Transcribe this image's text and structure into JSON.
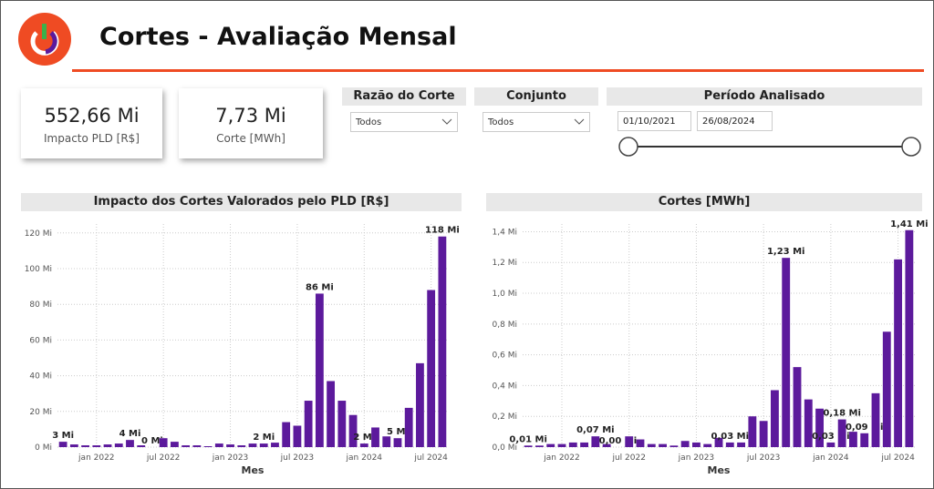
{
  "header": {
    "title": "Cortes - Avaliação Mensal"
  },
  "kpis": [
    {
      "value": "552,66 Mi",
      "label": "Impacto PLD [R$]"
    },
    {
      "value": "7,73 Mi",
      "label": "Corte [MWh]"
    }
  ],
  "filters": [
    {
      "label": "Razão do Corte",
      "selection": "Todos"
    },
    {
      "label": "Conjunto",
      "selection": "Todos"
    }
  ],
  "period": {
    "label": "Período Analisado",
    "start": "01/10/2021",
    "end": "26/08/2024"
  },
  "charts": [
    {
      "type": "bar",
      "title": "Impacto dos Cortes Valorados pelo PLD [R$]",
      "xlabel": "Mes",
      "color": "#5c1a9c",
      "grid": true,
      "categories": [
        null,
        null,
        null,
        "jan 2022",
        null,
        null,
        null,
        null,
        null,
        "jul 2022",
        null,
        null,
        null,
        null,
        null,
        "jan 2023",
        null,
        null,
        null,
        null,
        null,
        "jul 2023",
        null,
        null,
        null,
        null,
        null,
        "jan 2024",
        null,
        null,
        null,
        null,
        null,
        "jul 2024",
        null
      ],
      "values": [
        3,
        1.5,
        1,
        1,
        1.5,
        2,
        4,
        1,
        0,
        5,
        3,
        1,
        1,
        0.5,
        2,
        1.5,
        1,
        2,
        2,
        2.5,
        14,
        12,
        26,
        86,
        37,
        26,
        18,
        2,
        11,
        6,
        5,
        22,
        47,
        88,
        118
      ],
      "value_labels": [
        "3 Mi",
        null,
        null,
        null,
        null,
        null,
        "4 Mi",
        null,
        "0 Mi",
        null,
        null,
        null,
        null,
        null,
        null,
        null,
        null,
        null,
        "2 Mi",
        null,
        null,
        null,
        null,
        "86 Mi",
        null,
        null,
        null,
        "2 Mi",
        null,
        null,
        "5 Mi",
        null,
        null,
        null,
        "118 Mi"
      ],
      "ylim": [
        0,
        125
      ],
      "yticks": [
        {
          "value": 0,
          "label": "0 Mi"
        },
        {
          "value": 20,
          "label": "20 Mi"
        },
        {
          "value": 40,
          "label": "40 Mi"
        },
        {
          "value": 60,
          "label": "60 Mi"
        },
        {
          "value": 80,
          "label": "80 Mi"
        },
        {
          "value": 100,
          "label": "100 Mi"
        },
        {
          "value": 120,
          "label": "120 Mi"
        }
      ]
    },
    {
      "type": "bar",
      "title": "Cortes [MWh]",
      "xlabel": "Mes",
      "color": "#5c1a9c",
      "grid": true,
      "categories": [
        null,
        null,
        null,
        "jan 2022",
        null,
        null,
        null,
        null,
        null,
        "jul 2022",
        null,
        null,
        null,
        null,
        null,
        "jan 2023",
        null,
        null,
        null,
        null,
        null,
        "jul 2023",
        null,
        null,
        null,
        null,
        null,
        "jan 2024",
        null,
        null,
        null,
        null,
        null,
        "jul 2024",
        null
      ],
      "values": [
        0.01,
        0.01,
        0.02,
        0.02,
        0.03,
        0.03,
        0.07,
        0.02,
        0.0,
        0.07,
        0.05,
        0.02,
        0.02,
        0.01,
        0.04,
        0.03,
        0.02,
        0.06,
        0.03,
        0.03,
        0.2,
        0.17,
        0.37,
        1.23,
        0.52,
        0.31,
        0.25,
        0.03,
        0.18,
        0.1,
        0.09,
        0.35,
        0.75,
        1.22,
        1.41
      ],
      "value_labels": [
        "0,01 Mi",
        null,
        null,
        null,
        null,
        null,
        "0,07 Mi",
        null,
        "0,00 Mi",
        null,
        null,
        null,
        null,
        null,
        null,
        null,
        null,
        null,
        "0,03 Mi",
        null,
        null,
        null,
        null,
        "1,23 Mi",
        null,
        null,
        null,
        "0,03 Mi",
        "0,18 Mi",
        null,
        "0,09 Mi",
        null,
        null,
        null,
        "1,41 Mi"
      ],
      "ylim": [
        0,
        1.45
      ],
      "yticks": [
        {
          "value": 0,
          "label": "0,0 Mi"
        },
        {
          "value": 0.2,
          "label": "0,2 Mi"
        },
        {
          "value": 0.4,
          "label": "0,4 Mi"
        },
        {
          "value": 0.6,
          "label": "0,6 Mi"
        },
        {
          "value": 0.8,
          "label": "0,8 Mi"
        },
        {
          "value": 1.0,
          "label": "1,0 Mi"
        },
        {
          "value": 1.2,
          "label": "1,2 Mi"
        },
        {
          "value": 1.4,
          "label": "1,4 Mi"
        }
      ]
    }
  ]
}
